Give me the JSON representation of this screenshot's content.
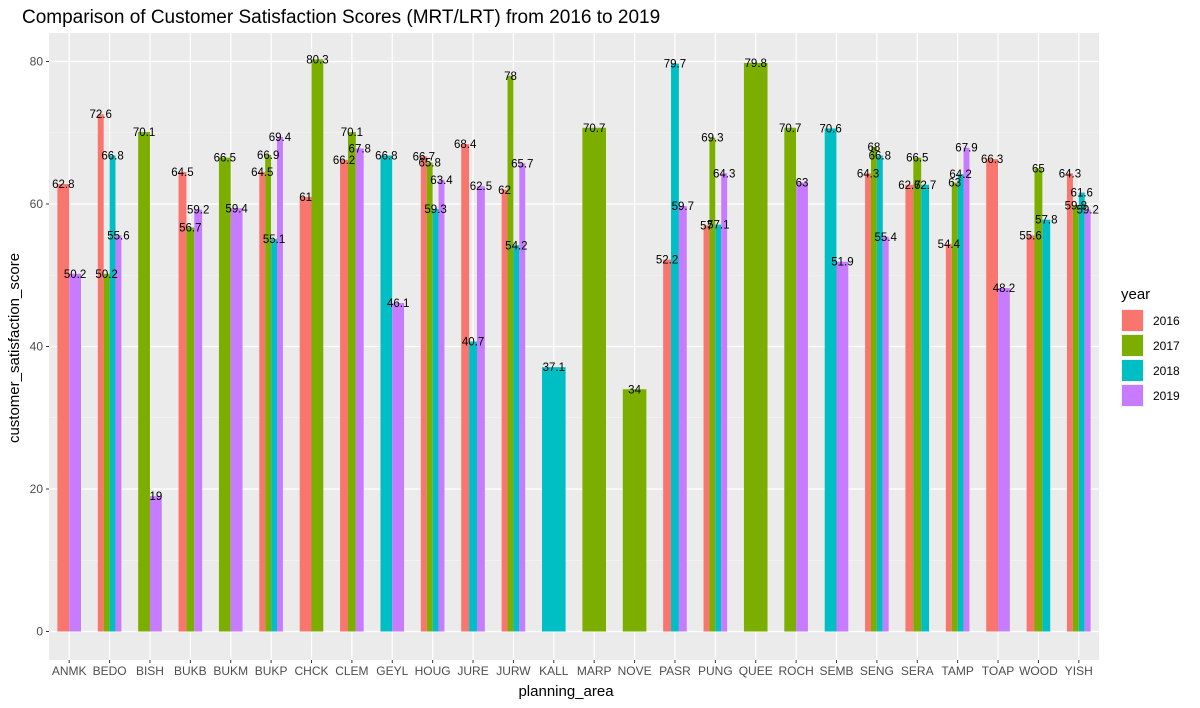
{
  "chart_data": {
    "type": "bar",
    "title": "Comparison of Customer Satisfaction Scores (MRT/LRT) from 2016 to 2019",
    "xlabel": "planning_area",
    "ylabel": "customer_satisfaction_score",
    "ylim": [
      -4,
      84
    ],
    "yticks": [
      0,
      20,
      40,
      60,
      80
    ],
    "grid": true,
    "legend": {
      "title": "year",
      "position": "right"
    },
    "series": [
      {
        "name": "2016",
        "color": "#F8766D"
      },
      {
        "name": "2017",
        "color": "#7CAE00"
      },
      {
        "name": "2018",
        "color": "#00BFC4"
      },
      {
        "name": "2019",
        "color": "#C77CFF"
      }
    ],
    "categories": [
      {
        "name": "ANMK",
        "bars": [
          {
            "year": "2016",
            "value": 62.8
          },
          {
            "year": "2019",
            "value": 50.2
          }
        ]
      },
      {
        "name": "BEDO",
        "bars": [
          {
            "year": "2016",
            "value": 72.6
          },
          {
            "year": "2017",
            "value": 50.2
          },
          {
            "year": "2018",
            "value": 66.8
          },
          {
            "year": "2019",
            "value": 55.6
          }
        ]
      },
      {
        "name": "BISH",
        "bars": [
          {
            "year": "2017",
            "value": 70.1
          },
          {
            "year": "2019",
            "value": 19
          }
        ]
      },
      {
        "name": "BUKB",
        "bars": [
          {
            "year": "2016",
            "value": 64.5
          },
          {
            "year": "2017",
            "value": 56.7
          },
          {
            "year": "2019",
            "value": 59.2
          }
        ]
      },
      {
        "name": "BUKM",
        "bars": [
          {
            "year": "2017",
            "value": 66.5
          },
          {
            "year": "2019",
            "value": 59.4
          }
        ]
      },
      {
        "name": "BUKP",
        "bars": [
          {
            "year": "2016",
            "value": 64.5
          },
          {
            "year": "2017",
            "value": 66.9
          },
          {
            "year": "2018",
            "value": 55.1
          },
          {
            "year": "2019",
            "value": 69.4
          }
        ]
      },
      {
        "name": "CHCK",
        "bars": [
          {
            "year": "2016",
            "value": 61
          },
          {
            "year": "2017",
            "value": 80.3
          }
        ]
      },
      {
        "name": "CLEM",
        "bars": [
          {
            "year": "2016",
            "value": 66.2
          },
          {
            "year": "2017",
            "value": 70.1
          },
          {
            "year": "2019",
            "value": 67.8
          }
        ]
      },
      {
        "name": "GEYL",
        "bars": [
          {
            "year": "2018",
            "value": 66.8
          },
          {
            "year": "2019",
            "value": 46.1
          }
        ]
      },
      {
        "name": "HOUG",
        "bars": [
          {
            "year": "2016",
            "value": 66.7
          },
          {
            "year": "2017",
            "value": 65.8
          },
          {
            "year": "2018",
            "value": 59.3
          },
          {
            "year": "2019",
            "value": 63.4
          }
        ]
      },
      {
        "name": "JURE",
        "bars": [
          {
            "year": "2016",
            "value": 68.4
          },
          {
            "year": "2018",
            "value": 40.7
          },
          {
            "year": "2019",
            "value": 62.5
          }
        ]
      },
      {
        "name": "JURW",
        "bars": [
          {
            "year": "2016",
            "value": 62
          },
          {
            "year": "2017",
            "value": 78
          },
          {
            "year": "2018",
            "value": 54.2
          },
          {
            "year": "2019",
            "value": 65.7
          }
        ]
      },
      {
        "name": "KALL",
        "bars": [
          {
            "year": "2018",
            "value": 37.1
          }
        ]
      },
      {
        "name": "MARP",
        "bars": [
          {
            "year": "2017",
            "value": 70.7
          }
        ]
      },
      {
        "name": "NOVE",
        "bars": [
          {
            "year": "2017",
            "value": 34
          }
        ]
      },
      {
        "name": "PASR",
        "bars": [
          {
            "year": "2016",
            "value": 52.2
          },
          {
            "year": "2018",
            "value": 79.7
          },
          {
            "year": "2019",
            "value": 59.7
          }
        ]
      },
      {
        "name": "PUNG",
        "bars": [
          {
            "year": "2016",
            "value": 57
          },
          {
            "year": "2017",
            "value": 69.3
          },
          {
            "year": "2018",
            "value": 57.1
          },
          {
            "year": "2019",
            "value": 64.3
          }
        ]
      },
      {
        "name": "QUEE",
        "bars": [
          {
            "year": "2017",
            "value": 79.8
          }
        ]
      },
      {
        "name": "ROCH",
        "bars": [
          {
            "year": "2017",
            "value": 70.7
          },
          {
            "year": "2019",
            "value": 63
          }
        ]
      },
      {
        "name": "SEMB",
        "bars": [
          {
            "year": "2018",
            "value": 70.6
          },
          {
            "year": "2019",
            "value": 51.9
          }
        ]
      },
      {
        "name": "SENG",
        "bars": [
          {
            "year": "2016",
            "value": 64.3
          },
          {
            "year": "2017",
            "value": 68
          },
          {
            "year": "2018",
            "value": 66.8
          },
          {
            "year": "2019",
            "value": 55.4
          }
        ]
      },
      {
        "name": "SERA",
        "bars": [
          {
            "year": "2016",
            "value": 62.7
          },
          {
            "year": "2017",
            "value": 66.5
          },
          {
            "year": "2018",
            "value": 62.7
          }
        ]
      },
      {
        "name": "TAMP",
        "bars": [
          {
            "year": "2016",
            "value": 54.4
          },
          {
            "year": "2017",
            "value": 63
          },
          {
            "year": "2018",
            "value": 64.2
          },
          {
            "year": "2019",
            "value": 67.9
          }
        ]
      },
      {
        "name": "TOAP",
        "bars": [
          {
            "year": "2016",
            "value": 66.3
          },
          {
            "year": "2019",
            "value": 48.2
          }
        ]
      },
      {
        "name": "WOOD",
        "bars": [
          {
            "year": "2016",
            "value": 55.6
          },
          {
            "year": "2017",
            "value": 65
          },
          {
            "year": "2018",
            "value": 57.8
          }
        ]
      },
      {
        "name": "YISH",
        "bars": [
          {
            "year": "2016",
            "value": 64.3
          },
          {
            "year": "2017",
            "value": 59.8
          },
          {
            "year": "2018",
            "value": 61.6
          },
          {
            "year": "2019",
            "value": 59.2
          }
        ]
      }
    ]
  }
}
